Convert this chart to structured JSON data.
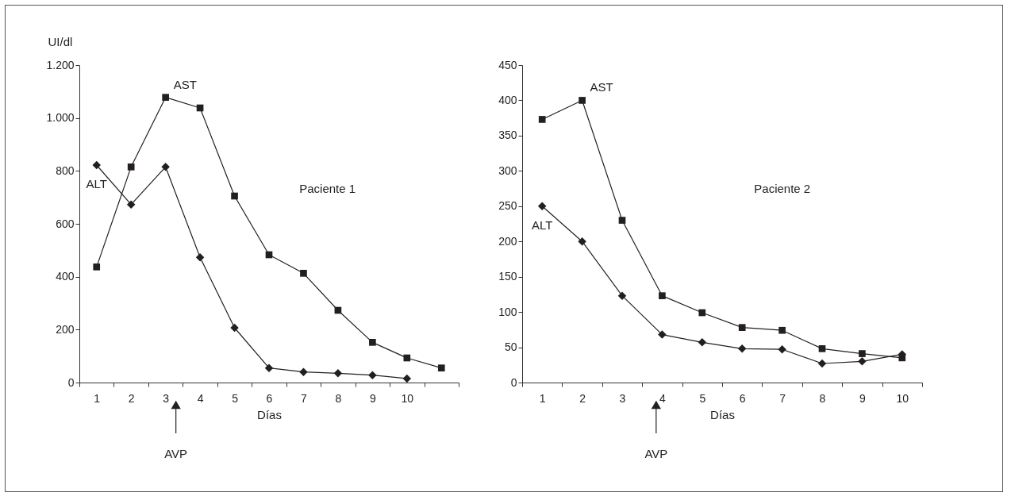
{
  "chart_data": [
    {
      "type": "line",
      "xlabel": "Días",
      "ylabel": "UI/dl",
      "categories": [
        "1",
        "2",
        "3",
        "4",
        "5",
        "6",
        "7",
        "8",
        "9",
        "10",
        null
      ],
      "ylim": [
        0,
        1200
      ],
      "yticks": [
        0,
        200,
        400,
        600,
        800,
        {
          "value": 1000,
          "label": "1.000"
        },
        {
          "value": 1200,
          "label": "1.200"
        }
      ],
      "series": [
        {
          "name": "AST",
          "color": "#231f20",
          "marker": "square",
          "values": [
            437,
            815,
            1078,
            1038,
            705,
            483,
            413,
            273,
            152,
            93,
            55
          ]
        },
        {
          "name": "ALT",
          "color": "#231f20",
          "marker": "diamond",
          "values": [
            822,
            673,
            815,
            473,
            207,
            55,
            40,
            35,
            28,
            15,
            null
          ]
        }
      ],
      "annotations": [
        "Paciente 1",
        "AVP"
      ]
    },
    {
      "type": "line",
      "xlabel": "Días",
      "categories": [
        "1",
        "2",
        "3",
        "4",
        "5",
        "6",
        "7",
        "8",
        "9",
        "10"
      ],
      "ylim": [
        0,
        450
      ],
      "yticks": [
        0,
        50,
        100,
        150,
        200,
        250,
        300,
        350,
        400,
        450
      ],
      "series": [
        {
          "name": "AST",
          "color": "#231f20",
          "marker": "square",
          "values": [
            373,
            400,
            230,
            123,
            99,
            78,
            74,
            48,
            41,
            35
          ]
        },
        {
          "name": "ALT",
          "color": "#231f20",
          "marker": "diamond",
          "values": [
            250,
            200,
            123,
            68,
            57,
            48,
            47,
            27,
            30,
            40
          ]
        }
      ],
      "annotations": [
        "Paciente 2",
        "AVP"
      ]
    }
  ]
}
